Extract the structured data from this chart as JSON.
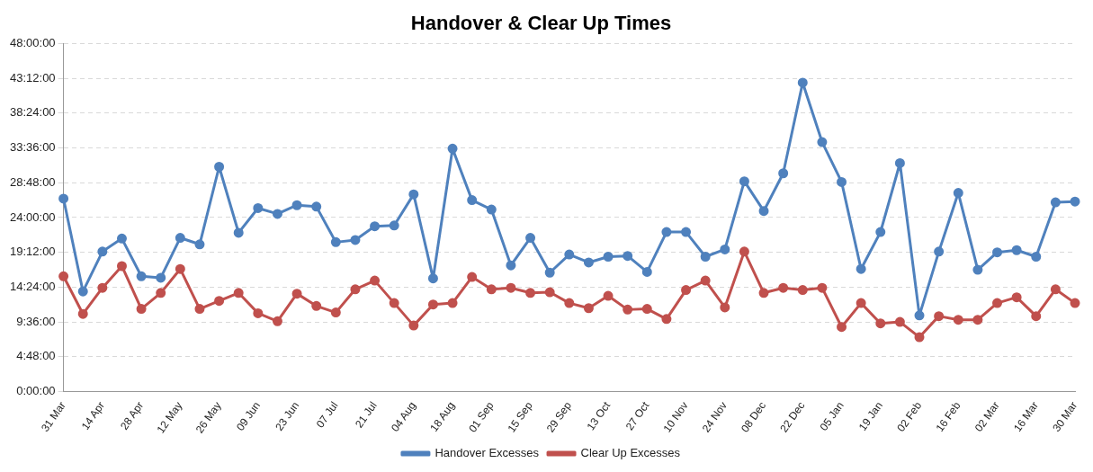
{
  "chart_data": {
    "type": "line",
    "title": "Handover & Clear Up Times",
    "categories": [
      "31 Mar",
      null,
      "14 Apr",
      null,
      "28 Apr",
      null,
      "12 May",
      null,
      "26 May",
      null,
      "09 Jun",
      null,
      "23 Jun",
      null,
      "07 Jul",
      null,
      "21 Jul",
      null,
      "04 Aug",
      null,
      "18 Aug",
      null,
      "01 Sep",
      null,
      "15 Sep",
      null,
      "29 Sep",
      null,
      "13 Oct",
      null,
      "27 Oct",
      null,
      "10 Nov",
      null,
      "24 Nov",
      null,
      "08 Dec",
      null,
      "22 Dec",
      null,
      "05 Jan",
      null,
      "19 Jan",
      null,
      "02 Feb",
      null,
      "16 Feb",
      null,
      "02 Mar",
      null,
      "16 Mar",
      null,
      "30 Mar"
    ],
    "series": [
      {
        "name": "Handover Excesses",
        "color": "#4f81bd",
        "values": [
          26.6,
          13.8,
          19.3,
          21.1,
          15.9,
          15.7,
          21.2,
          20.3,
          31.0,
          21.9,
          25.3,
          24.5,
          25.7,
          25.5,
          20.6,
          20.9,
          22.8,
          22.9,
          27.2,
          15.6,
          33.5,
          26.4,
          25.1,
          17.4,
          21.2,
          16.4,
          18.9,
          17.8,
          18.6,
          18.7,
          16.5,
          22.0,
          22.0,
          18.6,
          19.6,
          29.0,
          24.9,
          30.1,
          42.6,
          34.4,
          28.9,
          16.9,
          22.0,
          31.5,
          10.5,
          19.3,
          27.4,
          16.8,
          19.2,
          19.5,
          18.6,
          26.1,
          26.2
        ]
      },
      {
        "name": "Clear Up Excesses",
        "color": "#c0504d",
        "values": [
          15.9,
          10.7,
          14.3,
          17.3,
          11.4,
          13.6,
          16.9,
          11.4,
          12.5,
          13.6,
          10.8,
          9.7,
          13.5,
          11.8,
          10.9,
          14.1,
          15.3,
          12.2,
          9.1,
          12.0,
          12.2,
          15.8,
          14.1,
          14.3,
          13.6,
          13.7,
          12.2,
          11.5,
          13.2,
          11.3,
          11.4,
          10.0,
          14.0,
          15.3,
          11.6,
          19.3,
          13.6,
          14.3,
          14.0,
          14.3,
          8.9,
          12.2,
          9.4,
          9.6,
          7.5,
          10.4,
          9.9,
          9.9,
          12.2,
          13.0,
          10.4,
          14.1,
          12.2
        ]
      }
    ],
    "ylim": [
      0,
      48
    ],
    "yticks": [
      {
        "value": 0,
        "label": "0:00:00"
      },
      {
        "value": 4.8,
        "label": "4:48:00"
      },
      {
        "value": 9.6,
        "label": "9:36:00"
      },
      {
        "value": 14.4,
        "label": "14:24:00"
      },
      {
        "value": 19.2,
        "label": "19:12:00"
      },
      {
        "value": 24,
        "label": "24:00:00"
      },
      {
        "value": 28.8,
        "label": "28:48:00"
      },
      {
        "value": 33.6,
        "label": "33:36:00"
      },
      {
        "value": 38.4,
        "label": "38:24:00"
      },
      {
        "value": 43.2,
        "label": "43:12:00"
      },
      {
        "value": 48,
        "label": "48:00:00"
      }
    ],
    "grid": "y",
    "legend": "bottom",
    "marker": "circle",
    "line_style": "solid"
  }
}
